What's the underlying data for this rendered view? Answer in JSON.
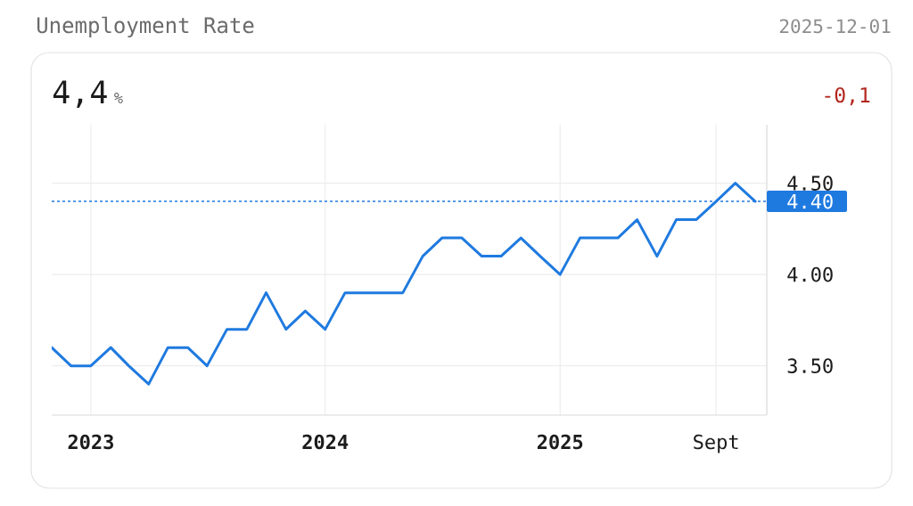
{
  "chart_data": {
    "type": "line",
    "title": "Unemployment Rate",
    "annotations": [
      "2025-12-01",
      "4,4",
      "%",
      "-0,1"
    ],
    "x": [
      "2022-11",
      "2022-12",
      "2023-01",
      "2023-02",
      "2023-03",
      "2023-04",
      "2023-05",
      "2023-06",
      "2023-07",
      "2023-08",
      "2023-09",
      "2023-10",
      "2023-11",
      "2023-12",
      "2024-01",
      "2024-02",
      "2024-03",
      "2024-04",
      "2024-05",
      "2024-06",
      "2024-07",
      "2024-08",
      "2024-09",
      "2024-10",
      "2024-11",
      "2024-12",
      "2025-01",
      "2025-02",
      "2025-03",
      "2025-04",
      "2025-05",
      "2025-06",
      "2025-07",
      "2025-08",
      "2025-09",
      "2025-10",
      "2025-11"
    ],
    "values": [
      3.6,
      3.5,
      3.5,
      3.6,
      3.5,
      3.4,
      3.6,
      3.6,
      3.5,
      3.7,
      3.7,
      3.9,
      3.7,
      3.8,
      3.7,
      3.9,
      3.9,
      3.9,
      3.9,
      4.1,
      4.2,
      4.2,
      4.1,
      4.1,
      4.2,
      4.1,
      4.0,
      4.2,
      4.2,
      4.2,
      4.3,
      4.1,
      4.3,
      4.3,
      4.4,
      4.5,
      4.4
    ],
    "color": "#1f7ae0",
    "xlim": [
      "2022-11-01",
      "2025-11-19"
    ],
    "xticks": [
      {
        "value": "2023-01",
        "label": "2023"
      },
      {
        "value": "2024-01",
        "label": "2024"
      },
      {
        "value": "2025-01",
        "label": "2025"
      },
      {
        "value": "2025-09",
        "label": "Sept"
      }
    ],
    "ylim": [
      3.23,
      4.82
    ],
    "yticks": [
      {
        "value": 3.5,
        "label": "3.50"
      },
      {
        "value": 4.0,
        "label": "4.00"
      },
      {
        "value": 4.5,
        "label": "4.50"
      }
    ],
    "grid": true,
    "ref_lines": [
      {
        "axis": "y",
        "value": 4.4,
        "label": "4.40",
        "color": "#1f7ae0",
        "line_style": "dashed"
      }
    ]
  }
}
